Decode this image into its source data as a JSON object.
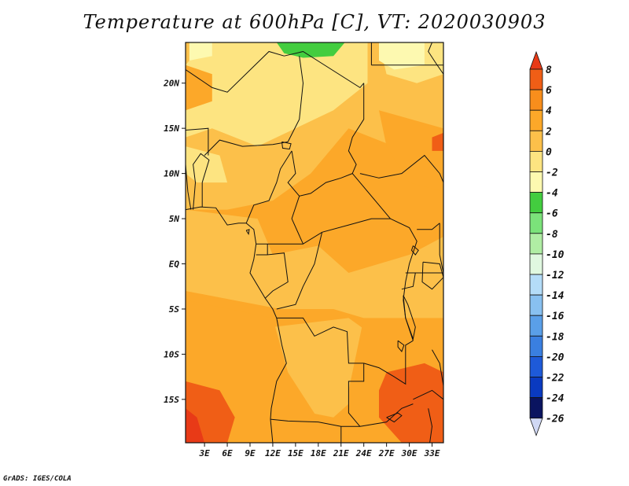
{
  "title": "Temperature at 600hPa [C], VT: 2020030903",
  "credit": "GrADS: IGES/COLA",
  "lat_labels": [
    "20N",
    "15N",
    "10N",
    "5N",
    "EQ",
    "5S",
    "10S",
    "15S"
  ],
  "lat_values": [
    20,
    15,
    10,
    5,
    0,
    -5,
    -10,
    -15
  ],
  "lon_labels": [
    "3E",
    "6E",
    "9E",
    "12E",
    "15E",
    "18E",
    "21E",
    "24E",
    "27E",
    "30E",
    "33E"
  ],
  "lon_values": [
    3,
    6,
    9,
    12,
    15,
    18,
    21,
    24,
    27,
    30,
    33
  ],
  "extent": {
    "lon_min": 0.5,
    "lon_max": 34.5,
    "lat_min": -19.8,
    "lat_max": 24.5
  },
  "colorbar": {
    "levels": [
      "8",
      "6",
      "4",
      "2",
      "0",
      "-2",
      "-4",
      "-6",
      "-8",
      "-10",
      "-12",
      "-14",
      "-16",
      "-18",
      "-20",
      "-22",
      "-24",
      "-26"
    ],
    "colors": [
      "#e83a17",
      "#f05e16",
      "#f88e1c",
      "#fca829",
      "#fcc04a",
      "#fde481",
      "#fdf9b0",
      "#43cd3f",
      "#7be27a",
      "#b0eda4",
      "#e0f8e0",
      "#b4dcf8",
      "#88c0f0",
      "#5a9fe8",
      "#3a7fe0",
      "#1e5ad8",
      "#0a3ac0",
      "#0a1460",
      "#d0d8f4"
    ]
  },
  "field_colors": {
    "cool": "#fde481",
    "mild": "#fcc04a",
    "warm": "#fca829",
    "hot": "#f05e16",
    "hottest": "#e83a17",
    "green": "#43cd3f",
    "pale": "#fdf9b0"
  }
}
